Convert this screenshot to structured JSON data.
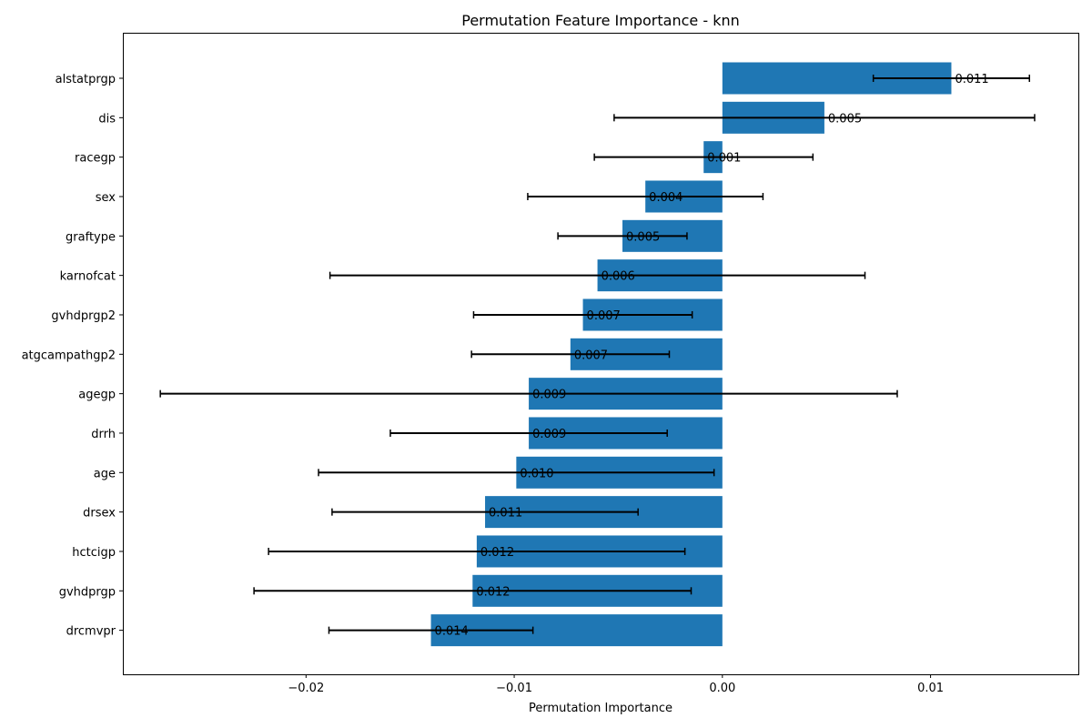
{
  "chart_data": {
    "type": "bar",
    "orientation": "horizontal",
    "title": "Permutation Feature Importance - knn",
    "xlabel": "Permutation Importance",
    "ylabel": "",
    "xlim": [
      -0.0288,
      0.0171
    ],
    "xticks": [
      -0.02,
      -0.01,
      0.0,
      0.01
    ],
    "xtick_labels": [
      "−0.02",
      "−0.01",
      "0.00",
      "0.01"
    ],
    "grid": false,
    "bar_color": "#1f77b4",
    "errorbar_color": "#000000",
    "categories": [
      "alstatprgp",
      "dis",
      "racegp",
      "sex",
      "graftype",
      "karnofcat",
      "gvhdprgp2",
      "atgcampathgp2",
      "agegp",
      "drrh",
      "age",
      "drsex",
      "hctcigp",
      "gvhdprgp",
      "drcmvpr"
    ],
    "values": [
      0.011,
      0.0049,
      -0.0009,
      -0.0037,
      -0.0048,
      -0.006,
      -0.0067,
      -0.0073,
      -0.0093,
      -0.0093,
      -0.0099,
      -0.0114,
      -0.0118,
      -0.012,
      -0.014
    ],
    "errors": [
      0.00375,
      0.0101,
      0.00525,
      0.00565,
      0.0031,
      0.01285,
      0.00525,
      0.00475,
      0.0177,
      0.00665,
      0.0095,
      0.00735,
      0.01,
      0.0105,
      0.0049
    ],
    "data_labels": [
      "0.011",
      "0.005",
      "0.001",
      "0.004",
      "0.005",
      "0.006",
      "0.007",
      "0.007",
      "0.009",
      "0.009",
      "0.010",
      "0.011",
      "0.012",
      "0.012",
      "0.014"
    ]
  }
}
